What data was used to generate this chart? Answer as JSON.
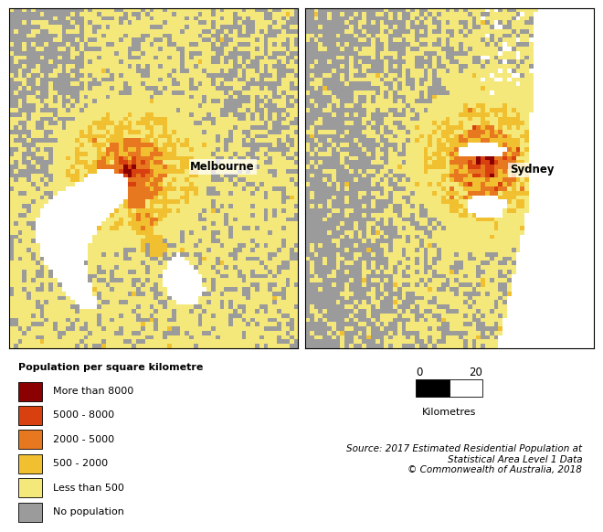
{
  "legend_title": "Population per square kilometre",
  "legend_items": [
    {
      "label": "More than 8000",
      "color": "#8B0000"
    },
    {
      "label": "5000 - 8000",
      "color": "#D94010"
    },
    {
      "label": "2000 - 5000",
      "color": "#E87820"
    },
    {
      "label": "500 - 2000",
      "color": "#F0C030"
    },
    {
      "label": "Less than 500",
      "color": "#F5E87A"
    },
    {
      "label": "No population",
      "color": "#9B9B9B"
    }
  ],
  "colors": {
    "dark_red": "#8B0000",
    "red_orange": "#D94010",
    "orange": "#E87820",
    "yellow": "#F0C030",
    "pale_yellow": "#F5E87A",
    "gray": "#9B9B9B",
    "water": "#FFFFFF",
    "background": "#FFFFFF",
    "border": "#000000"
  },
  "source_text": "Source: 2017 Estimated Residential Population at\nStatistical Area Level 1 Data\n© Commonwealth of Australia, 2018",
  "scale_label": "Kilometres",
  "scale_values": [
    "0",
    "20"
  ],
  "city_labels": [
    {
      "name": "Melbourne",
      "map": 0
    },
    {
      "name": "Sydney",
      "map": 1
    }
  ],
  "fig_width": 6.6,
  "fig_height": 5.82,
  "dpi": 100
}
